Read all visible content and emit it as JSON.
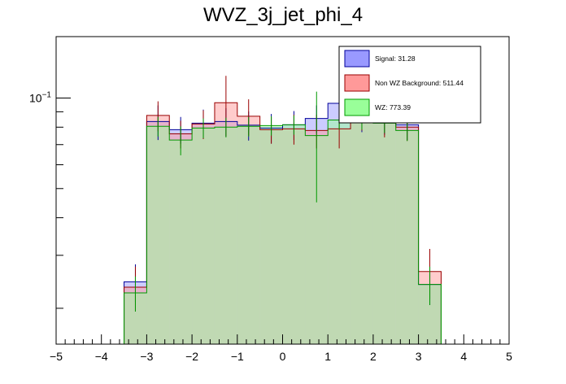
{
  "chart_data": {
    "type": "bar",
    "title": "WVZ_3j_jet_phi_4",
    "xlabel": "",
    "ylabel": "",
    "xlim": [
      -5,
      5
    ],
    "ylim": [
      0.0152,
      0.16
    ],
    "yscale": "log",
    "x_ticks": [
      -5,
      -4,
      -3,
      -2,
      -1,
      0,
      1,
      2,
      3,
      4,
      5
    ],
    "x_tick_labels": [
      "−5",
      "−4",
      "−3",
      "−2",
      "−1",
      "0",
      "1",
      "2",
      "3",
      "4",
      "5"
    ],
    "y_ticks_labeled": [
      {
        "value": 0.1,
        "base": "10",
        "exp": "−1"
      }
    ],
    "y_minor_ticks": [
      0.02,
      0.03,
      0.04,
      0.05,
      0.06,
      0.07,
      0.08,
      0.09
    ],
    "bin_edges": [
      -3.5,
      -3.0,
      -2.5,
      -2.0,
      -1.5,
      -1.0,
      -0.5,
      0.0,
      0.5,
      1.0,
      1.5,
      2.0,
      2.5,
      3.0,
      3.5
    ],
    "legend_position": "top-right",
    "series": [
      {
        "name": "Signal: 31.28",
        "color": "#9999ff",
        "edge": "#000099",
        "values": [
          0.0245,
          0.0835,
          0.0785,
          0.0825,
          0.0835,
          0.0812,
          0.0795,
          0.0815,
          0.0855,
          0.096,
          0.086,
          0.0845,
          0.0815,
          0.024
        ],
        "errors": [
          0.0035,
          0.011,
          0.008,
          0.009,
          0.009,
          0.009,
          0.009,
          0.009,
          0.009,
          0.01,
          0.009,
          0.009,
          0.009,
          0.0035
        ]
      },
      {
        "name": "Non WZ Background: 511.44",
        "color": "#ff9999",
        "edge": "#990000",
        "values": [
          0.0235,
          0.0875,
          0.076,
          0.082,
          0.0965,
          0.087,
          0.0785,
          0.079,
          0.078,
          0.079,
          0.087,
          0.083,
          0.08,
          0.0265
        ],
        "errors": [
          0.004,
          0.01,
          0.008,
          0.009,
          0.022,
          0.012,
          0.008,
          0.009,
          0.01,
          0.011,
          0.009,
          0.009,
          0.008,
          0.005
        ]
      },
      {
        "name": "WZ: 773.39",
        "color": "#99ff99",
        "edge": "#009900",
        "values": [
          0.0225,
          0.0805,
          0.0725,
          0.0795,
          0.08,
          0.0805,
          0.081,
          0.0815,
          0.075,
          0.0845,
          0.0845,
          0.0825,
          0.078,
          0.024
        ],
        "errors": [
          0.003,
          0.006,
          0.008,
          0.006,
          0.006,
          0.006,
          0.006,
          0.006,
          0.03,
          0.006,
          0.006,
          0.006,
          0.006,
          0.0035
        ]
      }
    ]
  }
}
